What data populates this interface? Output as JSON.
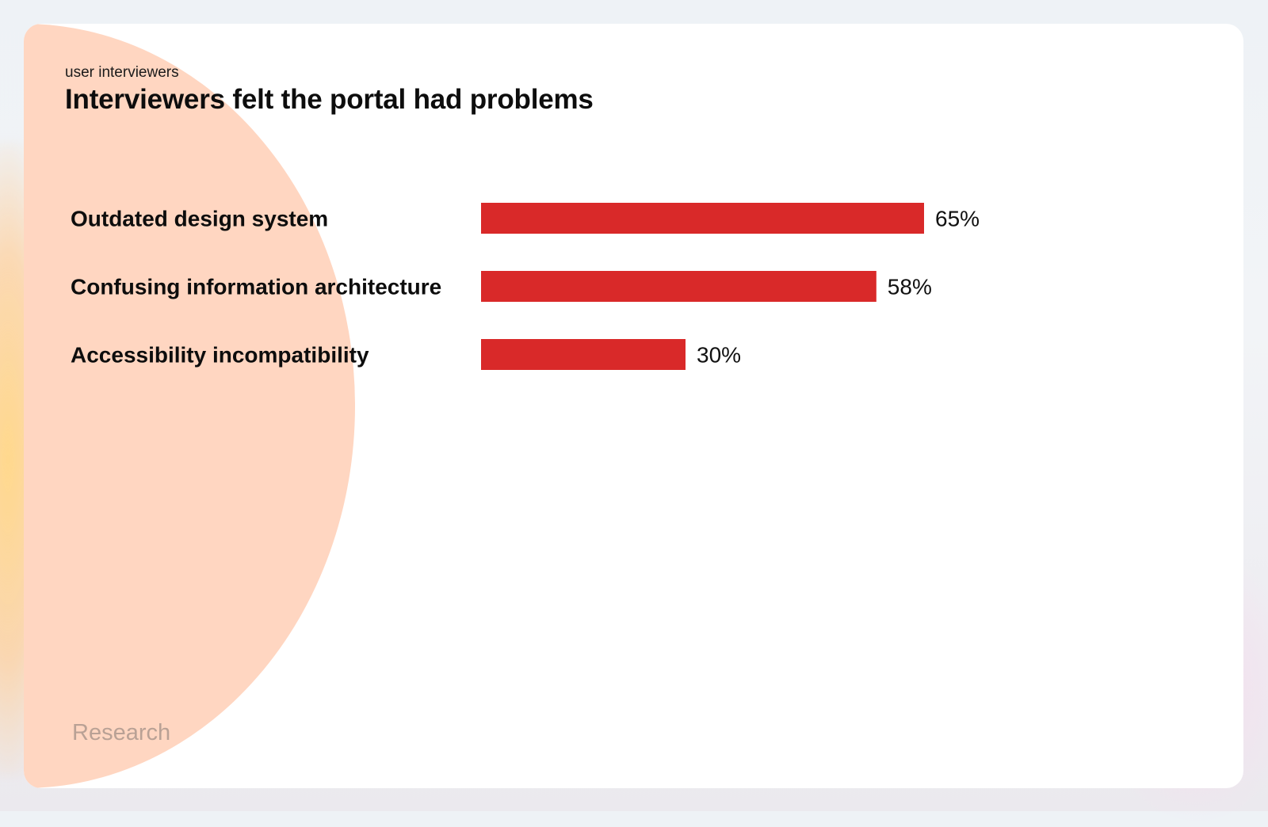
{
  "slide": {
    "subtitle": "user interviewers",
    "title": "Interviewers felt the portal had problems",
    "footer": "Research"
  },
  "colors": {
    "bar": "#d92929",
    "decor_circle": "#ffd6c1",
    "label_text": "#0d0d0d",
    "footer_text": "#b9a195"
  },
  "chart_data": {
    "type": "bar",
    "orientation": "horizontal",
    "categories": [
      "Outdated design system",
      "Confusing information architecture",
      "Accessibility incompatibility"
    ],
    "values": [
      65,
      58,
      30
    ],
    "value_labels": [
      "65%",
      "58%",
      "30%"
    ],
    "unit": "%",
    "title": "Interviewers felt the portal had problems",
    "xlabel": "",
    "ylabel": "",
    "grid": false,
    "legend": "none"
  }
}
